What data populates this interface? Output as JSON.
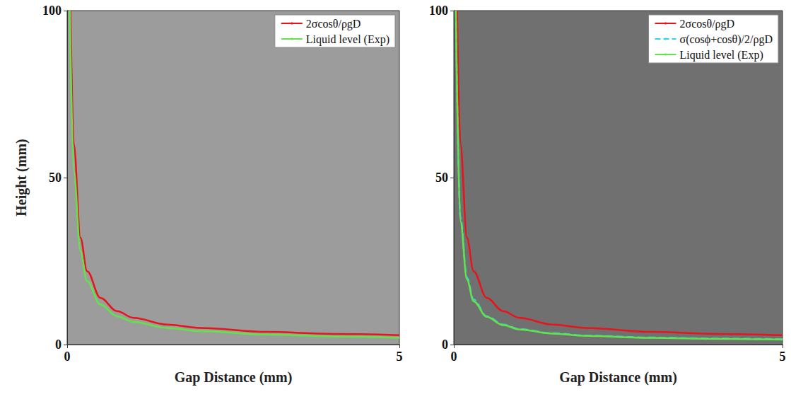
{
  "chart_data": [
    {
      "type": "line",
      "x_label": "Gap Distance (mm)",
      "y_label": "Height (mm)",
      "xlim": [
        0,
        5
      ],
      "ylim": [
        0,
        100
      ],
      "xticks": [
        0,
        5
      ],
      "yticks": [
        0,
        50,
        100
      ],
      "legend": "upper right",
      "series": [
        {
          "name": "2σcosθ/ρgD",
          "color": "#e8141b",
          "line_style": "solid",
          "x": [
            0.05,
            0.1,
            0.2,
            0.3,
            0.5,
            0.75,
            1,
            1.5,
            2,
            3,
            4,
            5
          ],
          "values": [
            100,
            60,
            32,
            22,
            14,
            10,
            8,
            6,
            5,
            3.8,
            3.2,
            2.8
          ]
        },
        {
          "name": "Liquid level (Exp)",
          "color": "#63e34a",
          "line_style": "solid",
          "x": [
            0.04,
            0.1,
            0.2,
            0.3,
            0.5,
            0.75,
            1,
            1.5,
            2,
            3,
            4,
            5
          ],
          "values": [
            100,
            52,
            28,
            19,
            12,
            8.5,
            6.8,
            5,
            4,
            3,
            2.4,
            2
          ]
        }
      ]
    },
    {
      "type": "line",
      "x_label": "Gap Distance (mm)",
      "xlim": [
        0,
        5
      ],
      "ylim": [
        0,
        100
      ],
      "xticks": [
        0,
        5
      ],
      "yticks": [
        0,
        50,
        100
      ],
      "legend": "upper right",
      "series": [
        {
          "name": "2σcosθ/ρgD",
          "color": "#e8141b",
          "line_style": "solid",
          "x": [
            0.05,
            0.1,
            0.2,
            0.3,
            0.5,
            0.75,
            1,
            1.5,
            2,
            3,
            4,
            5
          ],
          "values": [
            100,
            60,
            32,
            22,
            14,
            10,
            8,
            6,
            5,
            3.8,
            3.2,
            2.8
          ]
        },
        {
          "name": "σ(cosϕ+cosθ)/2/ρgD",
          "color": "#2fd5e0",
          "line_style": "dashed",
          "x": [
            0.03,
            0.1,
            0.2,
            0.3,
            0.5,
            0.75,
            1,
            1.5,
            2,
            3,
            4,
            5
          ],
          "values": [
            100,
            38,
            20,
            13.5,
            8.5,
            6,
            4.6,
            3.4,
            2.7,
            2.1,
            1.8,
            1.6
          ]
        },
        {
          "name": "Liquid level (Exp)",
          "color": "#63e34a",
          "line_style": "solid",
          "x": [
            0.03,
            0.1,
            0.2,
            0.3,
            0.5,
            0.75,
            1,
            1.5,
            2,
            3,
            4,
            5
          ],
          "values": [
            100,
            37,
            19.5,
            13,
            8.3,
            5.8,
            4.5,
            3.3,
            2.6,
            2.0,
            1.7,
            1.5
          ]
        }
      ]
    }
  ]
}
